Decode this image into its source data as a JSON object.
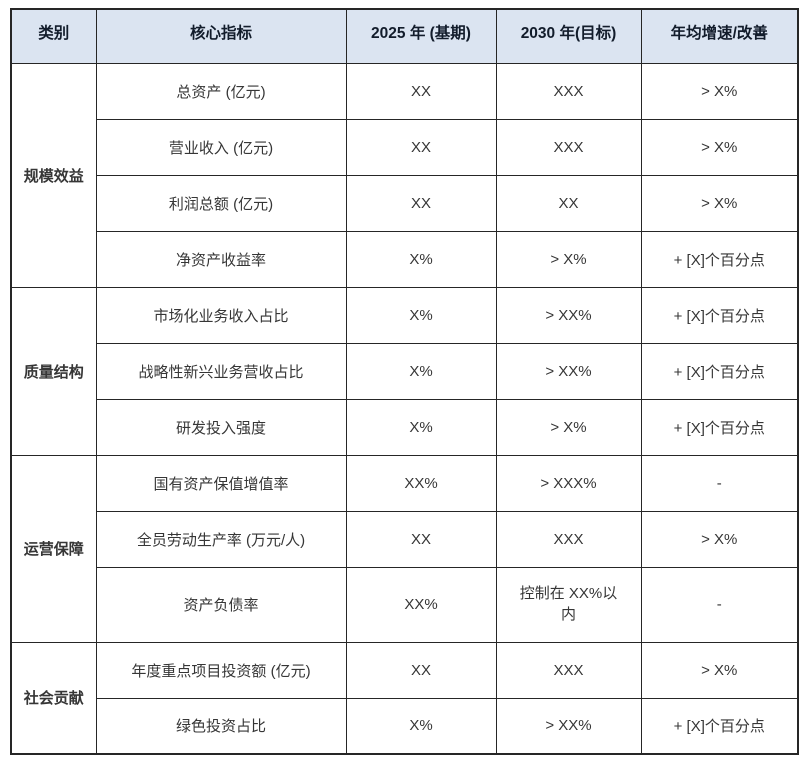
{
  "table": {
    "header": {
      "category": "类别",
      "indicator": "核心指标",
      "base": "2025 年 (基期)",
      "target": "2030 年(目标)",
      "growth": "年均增速/改善"
    },
    "groups": [
      {
        "category": "规模效益",
        "rows": [
          {
            "indicator": "总资产 (亿元)",
            "base": "XX",
            "target": "XXX",
            "growth": "> X%"
          },
          {
            "indicator": "营业收入 (亿元)",
            "base": "XX",
            "target": "XXX",
            "growth": "> X%"
          },
          {
            "indicator": "利润总额 (亿元)",
            "base": "XX",
            "target": "XX",
            "growth": "> X%"
          },
          {
            "indicator": "净资产收益率",
            "base": "X%",
            "target": "> X%",
            "growth": "+ [X]个百分点"
          }
        ]
      },
      {
        "category": "质量结构",
        "rows": [
          {
            "indicator": "市场化业务收入占比",
            "base": "X%",
            "target": "> XX%",
            "growth": "+ [X]个百分点"
          },
          {
            "indicator": "战略性新兴业务营收占比",
            "base": "X%",
            "target": "> XX%",
            "growth": "+ [X]个百分点"
          },
          {
            "indicator": "研发投入强度",
            "base": "X%",
            "target": "> X%",
            "growth": "+ [X]个百分点"
          }
        ]
      },
      {
        "category": "运营保障",
        "rows": [
          {
            "indicator": "国有资产保值增值率",
            "base": "XX%",
            "target": "> XXX%",
            "growth": "-"
          },
          {
            "indicator": "全员劳动生产率 (万元/人)",
            "base": "XX",
            "target": "XXX",
            "growth": "> X%"
          },
          {
            "indicator": "资产负债率",
            "base": "XX%",
            "target": "控制在 XX%以\n内",
            "growth": "-"
          }
        ]
      },
      {
        "category": "社会贡献",
        "rows": [
          {
            "indicator": "年度重点项目投资额 (亿元)",
            "base": "XX",
            "target": "XXX",
            "growth": "> X%"
          },
          {
            "indicator": "绿色投资占比",
            "base": "X%",
            "target": "> XX%",
            "growth": "+ [X]个百分点"
          }
        ]
      }
    ]
  },
  "colors": {
    "header_bg": "#dbe4f1",
    "header_text": "#121c2b",
    "body_text": "#363636",
    "category_text": "#1c1c1c",
    "border": "#262626",
    "page_bg": "#ffffff"
  }
}
